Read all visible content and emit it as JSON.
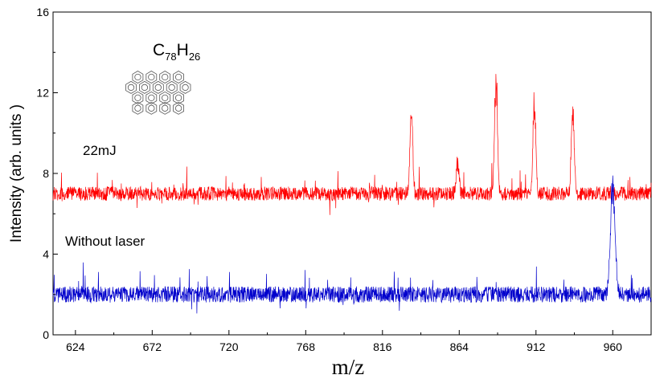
{
  "chart_data": {
    "type": "line",
    "title": "",
    "xlabel": "m/z",
    "ylabel": "Intensity (arb. units )",
    "xlim": [
      610,
      984
    ],
    "ylim": [
      0,
      16
    ],
    "x_ticks": [
      "624",
      "672",
      "720",
      "768",
      "816",
      "864",
      "912",
      "960"
    ],
    "y_ticks": [
      "0",
      "4",
      "8",
      "12",
      "16"
    ],
    "series": [
      {
        "name": "22mJ",
        "color": "#ff0000",
        "baseline": 7.0,
        "noise": 0.35,
        "peaks": [
          {
            "x": 834,
            "height": 11.5
          },
          {
            "x": 863,
            "height": 8.8
          },
          {
            "x": 887,
            "height": 13.6
          },
          {
            "x": 911,
            "height": 12.0
          },
          {
            "x": 935,
            "height": 11.6
          }
        ]
      },
      {
        "name": "Without laser",
        "color": "#0000cc",
        "baseline": 2.0,
        "noise": 0.4,
        "peaks": [
          {
            "x": 960,
            "height": 8.0
          }
        ]
      }
    ],
    "annotations": [
      {
        "text": "22mJ",
        "series": "22mJ"
      },
      {
        "text": "Without laser",
        "series": "Without laser"
      }
    ],
    "molecule": {
      "element1": "C",
      "sub1": "78",
      "element2": "H",
      "sub2": "26"
    }
  }
}
